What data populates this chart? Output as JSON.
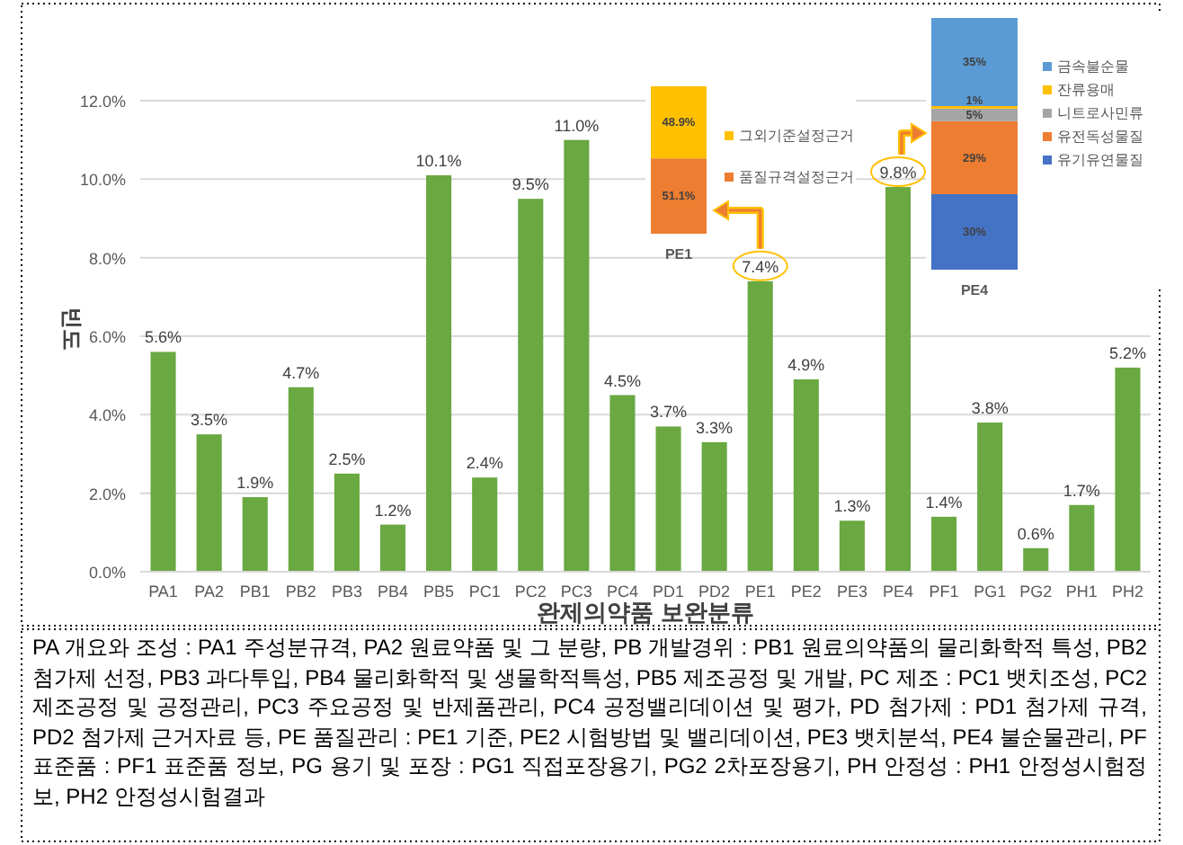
{
  "chart_data": [
    {
      "type": "bar",
      "xlabel": "완제의약품 보완분류",
      "ylabel": "빈도",
      "categories": [
        "PA1",
        "PA2",
        "PB1",
        "PB2",
        "PB3",
        "PB4",
        "PB5",
        "PC1",
        "PC2",
        "PC3",
        "PC4",
        "PD1",
        "PD2",
        "PE1",
        "PE2",
        "PE3",
        "PE4",
        "PF1",
        "PG1",
        "PG2",
        "PH1",
        "PH2"
      ],
      "values": [
        5.6,
        3.5,
        1.9,
        4.7,
        2.5,
        1.2,
        10.1,
        2.4,
        9.5,
        11.0,
        4.5,
        3.7,
        3.3,
        7.4,
        4.9,
        1.3,
        9.8,
        1.4,
        3.8,
        0.6,
        1.7,
        5.2
      ],
      "value_labels": [
        "5.6%",
        "3.5%",
        "1.9%",
        "4.7%",
        "2.5%",
        "1.2%",
        "10.1%",
        "2.4%",
        "9.5%",
        "11.0%",
        "4.5%",
        "3.7%",
        "3.3%",
        "7.4%",
        "4.9%",
        "1.3%",
        "9.8%",
        "1.4%",
        "3.8%",
        "0.6%",
        "1.7%",
        "5.2%"
      ],
      "color": "#6aa842",
      "ylim": [
        0,
        12
      ],
      "yticks": [
        {
          "value": 0,
          "label": "0.0%"
        },
        {
          "value": 2,
          "label": "2.0%"
        },
        {
          "value": 4,
          "label": "4.0%"
        },
        {
          "value": 6,
          "label": "6.0%"
        },
        {
          "value": 8,
          "label": "8.0%"
        },
        {
          "value": 10,
          "label": "10.0%"
        },
        {
          "value": 12,
          "label": "12.0%"
        }
      ],
      "grid": "y",
      "annotations": [
        "PA 개요와 조성 : PA1 주성분규격, PA2 원료약품 및 그 분량, PB 개발경위 : PB1 원료의약품의 물리화학적 특성, PB2 첨가제 선정, PB3 과다투입, PB4 물리화학적 및 생물학적특성, PB5 제조공정 및 개발, PC 제조 : PC1 뱃치조성, PC2 제조공정 및 공정관리, PC3 주요공정 및 반제품관리, PC4 공정밸리데이션 및 평가, PD 첨가제 : PD1 첨가제 규격, PD2 첨가제 근거자료 등, PE 품질관리 : PE1 기준, PE2 시험방법 및 밸리데이션, PE3 뱃치분석, PE4 불순물관리, PF 표준품 : PF1 표준품 정보, PG 용기 및 포장 : PG1 직접포장용기, PG2 2차포장용기, PH 안정성 : PH1 안정성시험정보, PH2 안정성시험결과"
      ]
    },
    {
      "type": "bar",
      "stacked": true,
      "categories": [
        "PE1"
      ],
      "legend": "right",
      "series": [
        {
          "name": "품질규격설정근거",
          "color": "#ed7d31",
          "values": [
            51.1
          ],
          "value_labels": [
            "51.1%"
          ]
        },
        {
          "name": "그외기준설정근거",
          "color": "#ffc000",
          "values": [
            48.9
          ],
          "value_labels": [
            "48.9%"
          ]
        }
      ]
    },
    {
      "type": "bar",
      "stacked": true,
      "categories": [
        "PE4"
      ],
      "legend": "right",
      "series": [
        {
          "name": "유기유연물질",
          "color": "#4472c4",
          "values": [
            30
          ],
          "value_labels": [
            "30%"
          ]
        },
        {
          "name": "유전독성물질",
          "color": "#ed7d31",
          "values": [
            29
          ],
          "value_labels": [
            "29%"
          ]
        },
        {
          "name": "니트로사민류",
          "color": "#a5a5a5",
          "values": [
            5
          ],
          "value_labels": [
            "5%"
          ]
        },
        {
          "name": "잔류용매",
          "color": "#ffc000",
          "values": [
            1
          ],
          "value_labels": [
            "1%"
          ]
        },
        {
          "name": "금속불순물",
          "color": "#5b9bd5",
          "values": [
            35
          ],
          "value_labels": [
            "35%"
          ]
        }
      ]
    }
  ]
}
